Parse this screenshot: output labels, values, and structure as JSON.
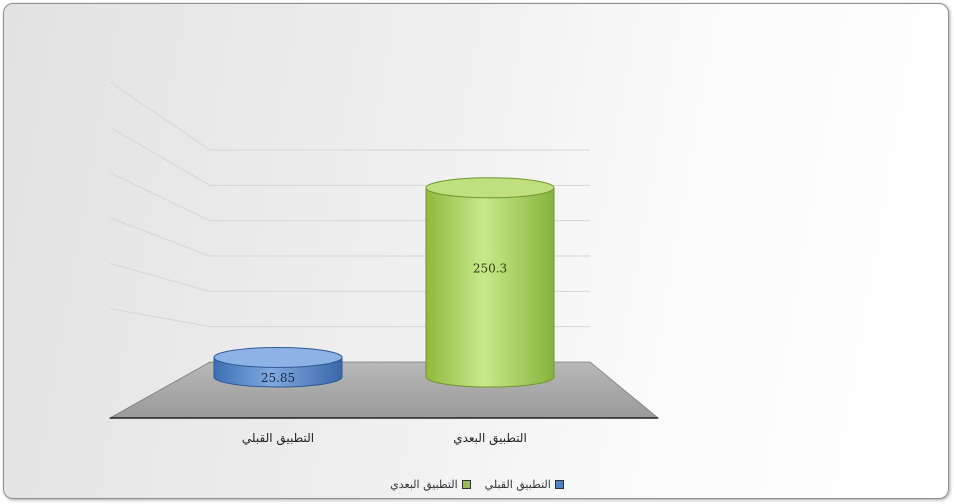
{
  "chart_data": {
    "type": "bar",
    "style": "3d-cylinder",
    "categories": [
      "التطبيق القبلي",
      "التطبيق البعدي"
    ],
    "values": [
      25.85,
      250.3
    ],
    "series": [
      {
        "name": "التطبيق القبلي",
        "color": "#5b8fd0",
        "value": 25.85
      },
      {
        "name": "التطبيق البعدي",
        "color": "#a9d15b",
        "value": 250.3
      }
    ],
    "data_labels": [
      "25.85",
      "250.3"
    ],
    "title": "",
    "xlabel": "",
    "ylabel": "",
    "ylim": [
      0,
      300
    ],
    "grid": true,
    "legend_position": "bottom"
  }
}
